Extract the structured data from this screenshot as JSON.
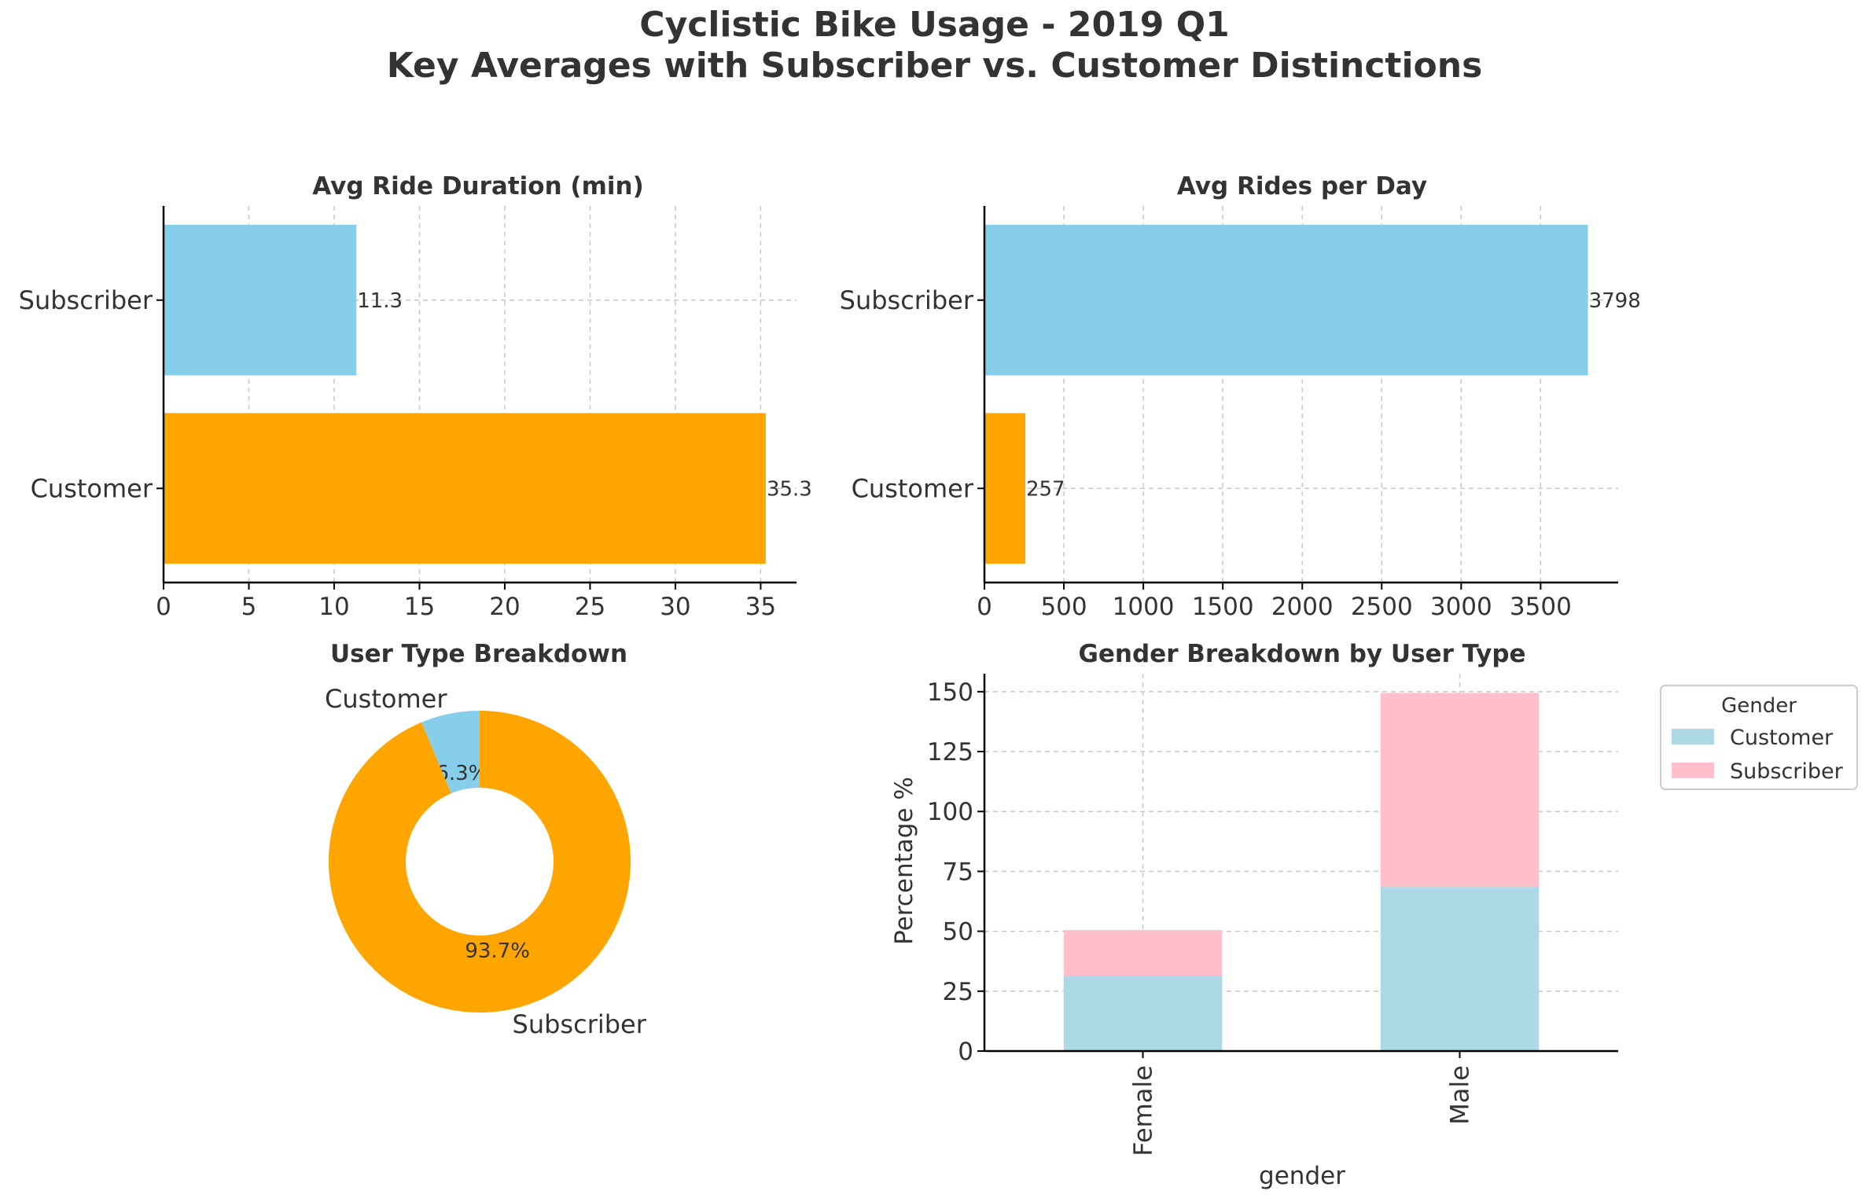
{
  "figure": {
    "title_line1": "Cyclistic Bike Usage - 2019 Q1",
    "title_line2": "Key Averages with Subscriber vs. Customer Distinctions"
  },
  "colors": {
    "orange": "#FFA500",
    "skyblue": "#87CEEB",
    "lightblue": "#ADD8E6",
    "pink": "#FFC0CB",
    "text": "#333333",
    "axis": "#000000",
    "grid": "#c8c8c8"
  },
  "chart_data": [
    {
      "id": "duration",
      "type": "bar",
      "orientation": "horizontal",
      "title": "Avg Ride Duration (min)",
      "categories": [
        "Subscriber",
        "Customer"
      ],
      "values": [
        11.3,
        35.3
      ],
      "value_labels": [
        "11.3",
        "35.3"
      ],
      "colors": [
        "#87CEEB",
        "#FFA500"
      ],
      "xlim": [
        0,
        37.1
      ],
      "xticks": [
        0,
        5,
        10,
        15,
        20,
        25,
        30,
        35
      ],
      "grid": true
    },
    {
      "id": "rides",
      "type": "bar",
      "orientation": "horizontal",
      "title": "Avg Rides per Day",
      "categories": [
        "Subscriber",
        "Customer"
      ],
      "values": [
        3798,
        257
      ],
      "value_labels": [
        "3798",
        "257"
      ],
      "colors": [
        "#87CEEB",
        "#FFA500"
      ],
      "xlim": [
        0,
        3988
      ],
      "xticks": [
        0,
        500,
        1000,
        1500,
        2000,
        2500,
        3000,
        3500
      ],
      "grid": true
    },
    {
      "id": "usertype",
      "type": "pie",
      "donut": true,
      "title": "User Type Breakdown",
      "labels": [
        "Customer",
        "Subscriber"
      ],
      "values": [
        6.3,
        93.7
      ],
      "pct_labels": [
        "6.3%",
        "93.7%"
      ],
      "colors": [
        "#87CEEB",
        "#FFA500"
      ]
    },
    {
      "id": "gender",
      "type": "bar",
      "stacked": true,
      "title": "Gender Breakdown by User Type",
      "categories": [
        "Female",
        "Male"
      ],
      "series": [
        {
          "name": "Customer",
          "values": [
            31.5,
            68.5
          ],
          "color": "#ADD8E6"
        },
        {
          "name": "Subscriber",
          "values": [
            19,
            81
          ],
          "color": "#FFC0CB"
        }
      ],
      "xlabel": "gender",
      "ylabel": "Percentage %",
      "ylim": [
        0,
        157.5
      ],
      "yticks": [
        0,
        25,
        50,
        75,
        100,
        125,
        150
      ],
      "legend_title": "Gender",
      "legend_position": "outside-right",
      "grid": true
    }
  ]
}
